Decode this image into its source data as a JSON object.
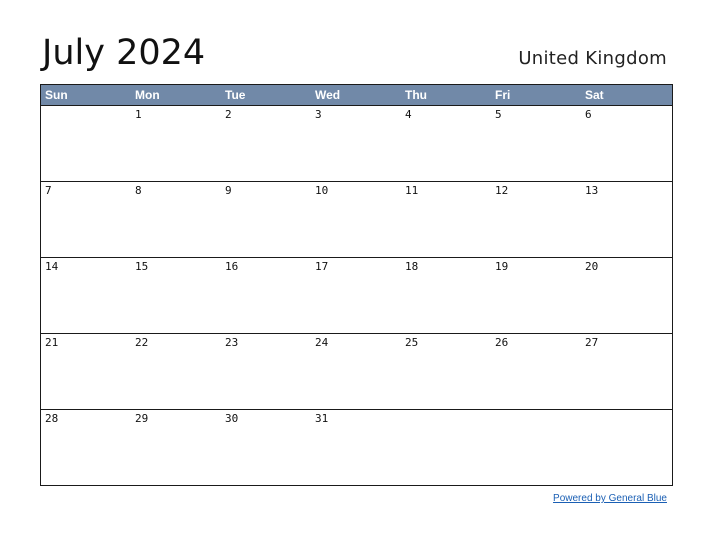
{
  "calendar": {
    "title": "July 2024",
    "region": "United Kingdom",
    "weekdays": [
      "Sun",
      "Mon",
      "Tue",
      "Wed",
      "Thu",
      "Fri",
      "Sat"
    ],
    "weeks": [
      [
        "",
        "1",
        "2",
        "3",
        "4",
        "5",
        "6"
      ],
      [
        "7",
        "8",
        "9",
        "10",
        "11",
        "12",
        "13"
      ],
      [
        "14",
        "15",
        "16",
        "17",
        "18",
        "19",
        "20"
      ],
      [
        "21",
        "22",
        "23",
        "24",
        "25",
        "26",
        "27"
      ],
      [
        "28",
        "29",
        "30",
        "31",
        "",
        "",
        ""
      ]
    ]
  },
  "footer": {
    "link_text": "Powered by General Blue"
  },
  "colors": {
    "header_background": "#7189a8",
    "header_text": "#ffffff",
    "grid_lines": "#1a1a1a",
    "link": "#1a5fb4"
  }
}
